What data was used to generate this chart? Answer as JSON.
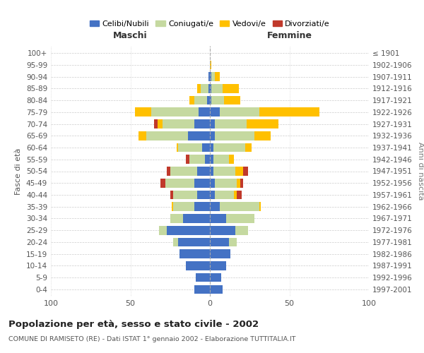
{
  "age_groups": [
    "0-4",
    "5-9",
    "10-14",
    "15-19",
    "20-24",
    "25-29",
    "30-34",
    "35-39",
    "40-44",
    "45-49",
    "50-54",
    "55-59",
    "60-64",
    "65-69",
    "70-74",
    "75-79",
    "80-84",
    "85-89",
    "90-94",
    "95-99",
    "100+"
  ],
  "birth_years": [
    "1997-2001",
    "1992-1996",
    "1987-1991",
    "1982-1986",
    "1977-1981",
    "1972-1976",
    "1967-1971",
    "1962-1966",
    "1957-1961",
    "1952-1956",
    "1947-1951",
    "1942-1946",
    "1937-1941",
    "1932-1936",
    "1927-1931",
    "1922-1926",
    "1917-1921",
    "1912-1916",
    "1907-1911",
    "1902-1906",
    "≤ 1901"
  ],
  "male": {
    "celibi": [
      10,
      9,
      15,
      19,
      20,
      27,
      17,
      10,
      8,
      10,
      8,
      3,
      5,
      14,
      10,
      7,
      2,
      1,
      1,
      0,
      0
    ],
    "coniugati": [
      0,
      0,
      0,
      0,
      3,
      5,
      8,
      13,
      15,
      18,
      17,
      10,
      15,
      26,
      20,
      30,
      8,
      5,
      0,
      0,
      0
    ],
    "vedovi": [
      0,
      0,
      0,
      0,
      0,
      0,
      0,
      1,
      0,
      0,
      0,
      0,
      1,
      5,
      3,
      10,
      3,
      2,
      0,
      0,
      0
    ],
    "divorziati": [
      0,
      0,
      0,
      0,
      0,
      0,
      0,
      0,
      2,
      3,
      2,
      2,
      0,
      0,
      2,
      0,
      0,
      0,
      0,
      0,
      0
    ]
  },
  "female": {
    "nubili": [
      8,
      7,
      10,
      13,
      12,
      16,
      10,
      6,
      3,
      3,
      2,
      2,
      2,
      3,
      3,
      6,
      1,
      1,
      1,
      0,
      0
    ],
    "coniugate": [
      0,
      0,
      0,
      0,
      5,
      8,
      18,
      25,
      12,
      14,
      14,
      10,
      20,
      25,
      20,
      25,
      8,
      7,
      2,
      0,
      0
    ],
    "vedove": [
      0,
      0,
      0,
      0,
      0,
      0,
      0,
      1,
      2,
      2,
      5,
      3,
      4,
      10,
      20,
      38,
      10,
      10,
      3,
      1,
      0
    ],
    "divorziate": [
      0,
      0,
      0,
      0,
      0,
      0,
      0,
      0,
      3,
      2,
      3,
      0,
      0,
      0,
      0,
      0,
      0,
      0,
      0,
      0,
      0
    ]
  },
  "colors": {
    "celibi": "#4472c4",
    "coniugati": "#c5d9a0",
    "vedovi": "#ffc000",
    "divorziati": "#c0392b"
  },
  "title": "Popolazione per età, sesso e stato civile - 2002",
  "subtitle": "COMUNE DI RAMISETO (RE) - Dati ISTAT 1° gennaio 2002 - Elaborazione TUTTITALIA.IT",
  "xlabel_left": "Maschi",
  "xlabel_right": "Femmine",
  "ylabel_left": "Fasce di età",
  "ylabel_right": "Anni di nascita",
  "xlim": 100,
  "background_color": "#ffffff",
  "grid_color": "#cccccc"
}
